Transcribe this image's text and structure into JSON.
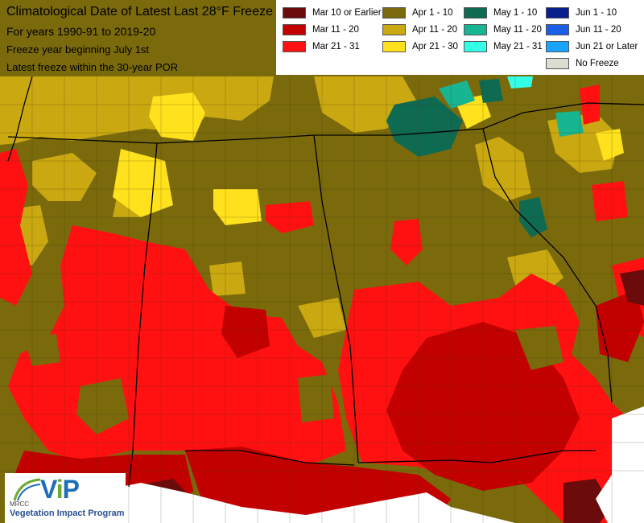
{
  "map": {
    "title": "Climatological Date of Latest Last 28°F Freeze",
    "period": "For years 1990-91 to 2019-20",
    "freeze_year_note": "Freeze year beginning July 1st",
    "por_note": "Latest freeze within the 30-year POR"
  },
  "legend": [
    {
      "label": "Mar 10 or Earlier",
      "color": "#6b0b0b"
    },
    {
      "label": "Mar 11 - 20",
      "color": "#c30000"
    },
    {
      "label": "Mar 21 - 31",
      "color": "#ff1111"
    },
    {
      "label": "Apr 1 - 10",
      "color": "#7a6a0c"
    },
    {
      "label": "Apr 11 - 20",
      "color": "#c9a812"
    },
    {
      "label": "Apr 21 - 30",
      "color": "#ffe11d"
    },
    {
      "label": "May 1 - 10",
      "color": "#0f6a52"
    },
    {
      "label": "May 11 - 20",
      "color": "#18b592"
    },
    {
      "label": "May 21 - 31",
      "color": "#33ffe6"
    },
    {
      "label": "Jun 1 - 10",
      "color": "#0a1f8e"
    },
    {
      "label": "Jun 11 - 20",
      "color": "#1b5fe6"
    },
    {
      "label": "Jun 21 or Later",
      "color": "#1aa3ff"
    },
    {
      "label": "No Freeze",
      "color": "#dcdcd0"
    }
  ],
  "logo": {
    "mark": "ViP",
    "org": "MRCC",
    "name": "Vegetation Impact Program"
  },
  "colors": {
    "water": "#ffffff",
    "state_border": "#000000",
    "county_border": "#3a3208"
  }
}
